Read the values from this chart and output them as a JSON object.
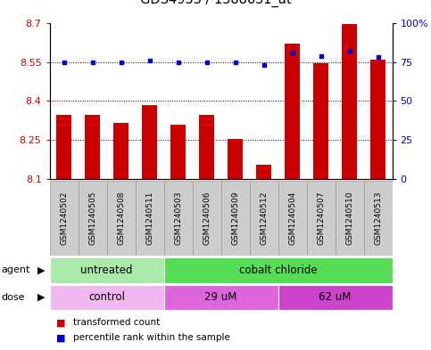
{
  "title": "GDS4953 / 1388631_at",
  "samples": [
    "GSM1240502",
    "GSM1240505",
    "GSM1240508",
    "GSM1240511",
    "GSM1240503",
    "GSM1240506",
    "GSM1240509",
    "GSM1240512",
    "GSM1240504",
    "GSM1240507",
    "GSM1240510",
    "GSM1240513"
  ],
  "bar_values": [
    8.345,
    8.345,
    8.315,
    8.385,
    8.31,
    8.345,
    8.255,
    8.155,
    8.62,
    8.545,
    8.695,
    8.56
  ],
  "percentile_values": [
    75,
    75,
    75,
    76,
    75,
    75,
    75,
    73,
    81,
    79,
    82,
    78
  ],
  "ylim_left": [
    8.1,
    8.7
  ],
  "ylim_right": [
    0,
    100
  ],
  "yticks_left": [
    8.1,
    8.25,
    8.4,
    8.55,
    8.7
  ],
  "yticks_right": [
    0,
    25,
    50,
    75,
    100
  ],
  "ytick_labels_left": [
    "8.1",
    "8.25",
    "8.4",
    "8.55",
    "8.7"
  ],
  "ytick_labels_right": [
    "0",
    "25",
    "50",
    "75",
    "100%"
  ],
  "hlines": [
    8.25,
    8.4,
    8.55
  ],
  "bar_color": "#cc0000",
  "dot_color": "#0000cc",
  "bar_bottom": 8.1,
  "agent_labels": [
    {
      "label": "untreated",
      "start": 0,
      "end": 4,
      "color": "#aaeaaa"
    },
    {
      "label": "cobalt chloride",
      "start": 4,
      "end": 12,
      "color": "#55dd55"
    }
  ],
  "dose_labels": [
    {
      "label": "control",
      "start": 0,
      "end": 4,
      "color": "#f0b8f0"
    },
    {
      "label": "29 uM",
      "start": 4,
      "end": 8,
      "color": "#dd66dd"
    },
    {
      "label": "62 uM",
      "start": 8,
      "end": 12,
      "color": "#cc44cc"
    }
  ],
  "legend_bar_label": "transformed count",
  "legend_dot_label": "percentile rank within the sample",
  "agent_row_label": "agent",
  "dose_row_label": "dose",
  "background_color": "#ffffff",
  "sample_label_bg": "#cccccc",
  "sample_label_edge": "#999999"
}
